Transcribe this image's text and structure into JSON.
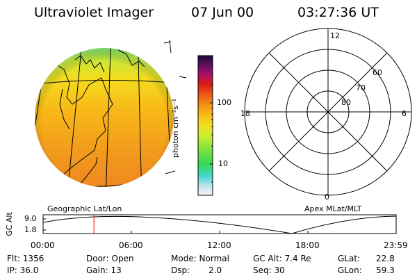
{
  "header": {
    "title": "Ultraviolet Imager",
    "date": "07 Jun 00",
    "time": "03:27:36 UT"
  },
  "colorbar": {
    "unit_label": "photon cm⁻²s⁻¹",
    "ticks": [
      "100",
      "10"
    ]
  },
  "polar": {
    "mlt_labels": {
      "top": "12",
      "left": "18",
      "right": "6",
      "bottom": "0"
    },
    "lat_labels": [
      "60",
      "70",
      "80"
    ]
  },
  "projection_labels": {
    "left": "Geographic Lat/Lon",
    "right": "Apex MLat/MLT"
  },
  "altitude_plot": {
    "ylabel": "GC Alt",
    "yticks": [
      "9.0",
      "1.8"
    ],
    "xticks": [
      "00:00",
      "06:00",
      "12:00",
      "18:00",
      "23:59"
    ],
    "current_time_fraction": 0.144,
    "marker_color": "#ff0000"
  },
  "status": {
    "flt": "Flt: 1356",
    "ip": "IP: 36.0",
    "door": "Door: Open",
    "gain": "Gain: 13",
    "mode": "Mode: Normal",
    "dsp_label": "Dsp:",
    "dsp_value": "2.0",
    "gc_alt": "GC Alt: 7.4 Re",
    "seq": "Seq: 30",
    "glat_label": "GLat:",
    "glat_value": "22.8",
    "glon_label": "GLon:",
    "glon_value": "59.3"
  }
}
